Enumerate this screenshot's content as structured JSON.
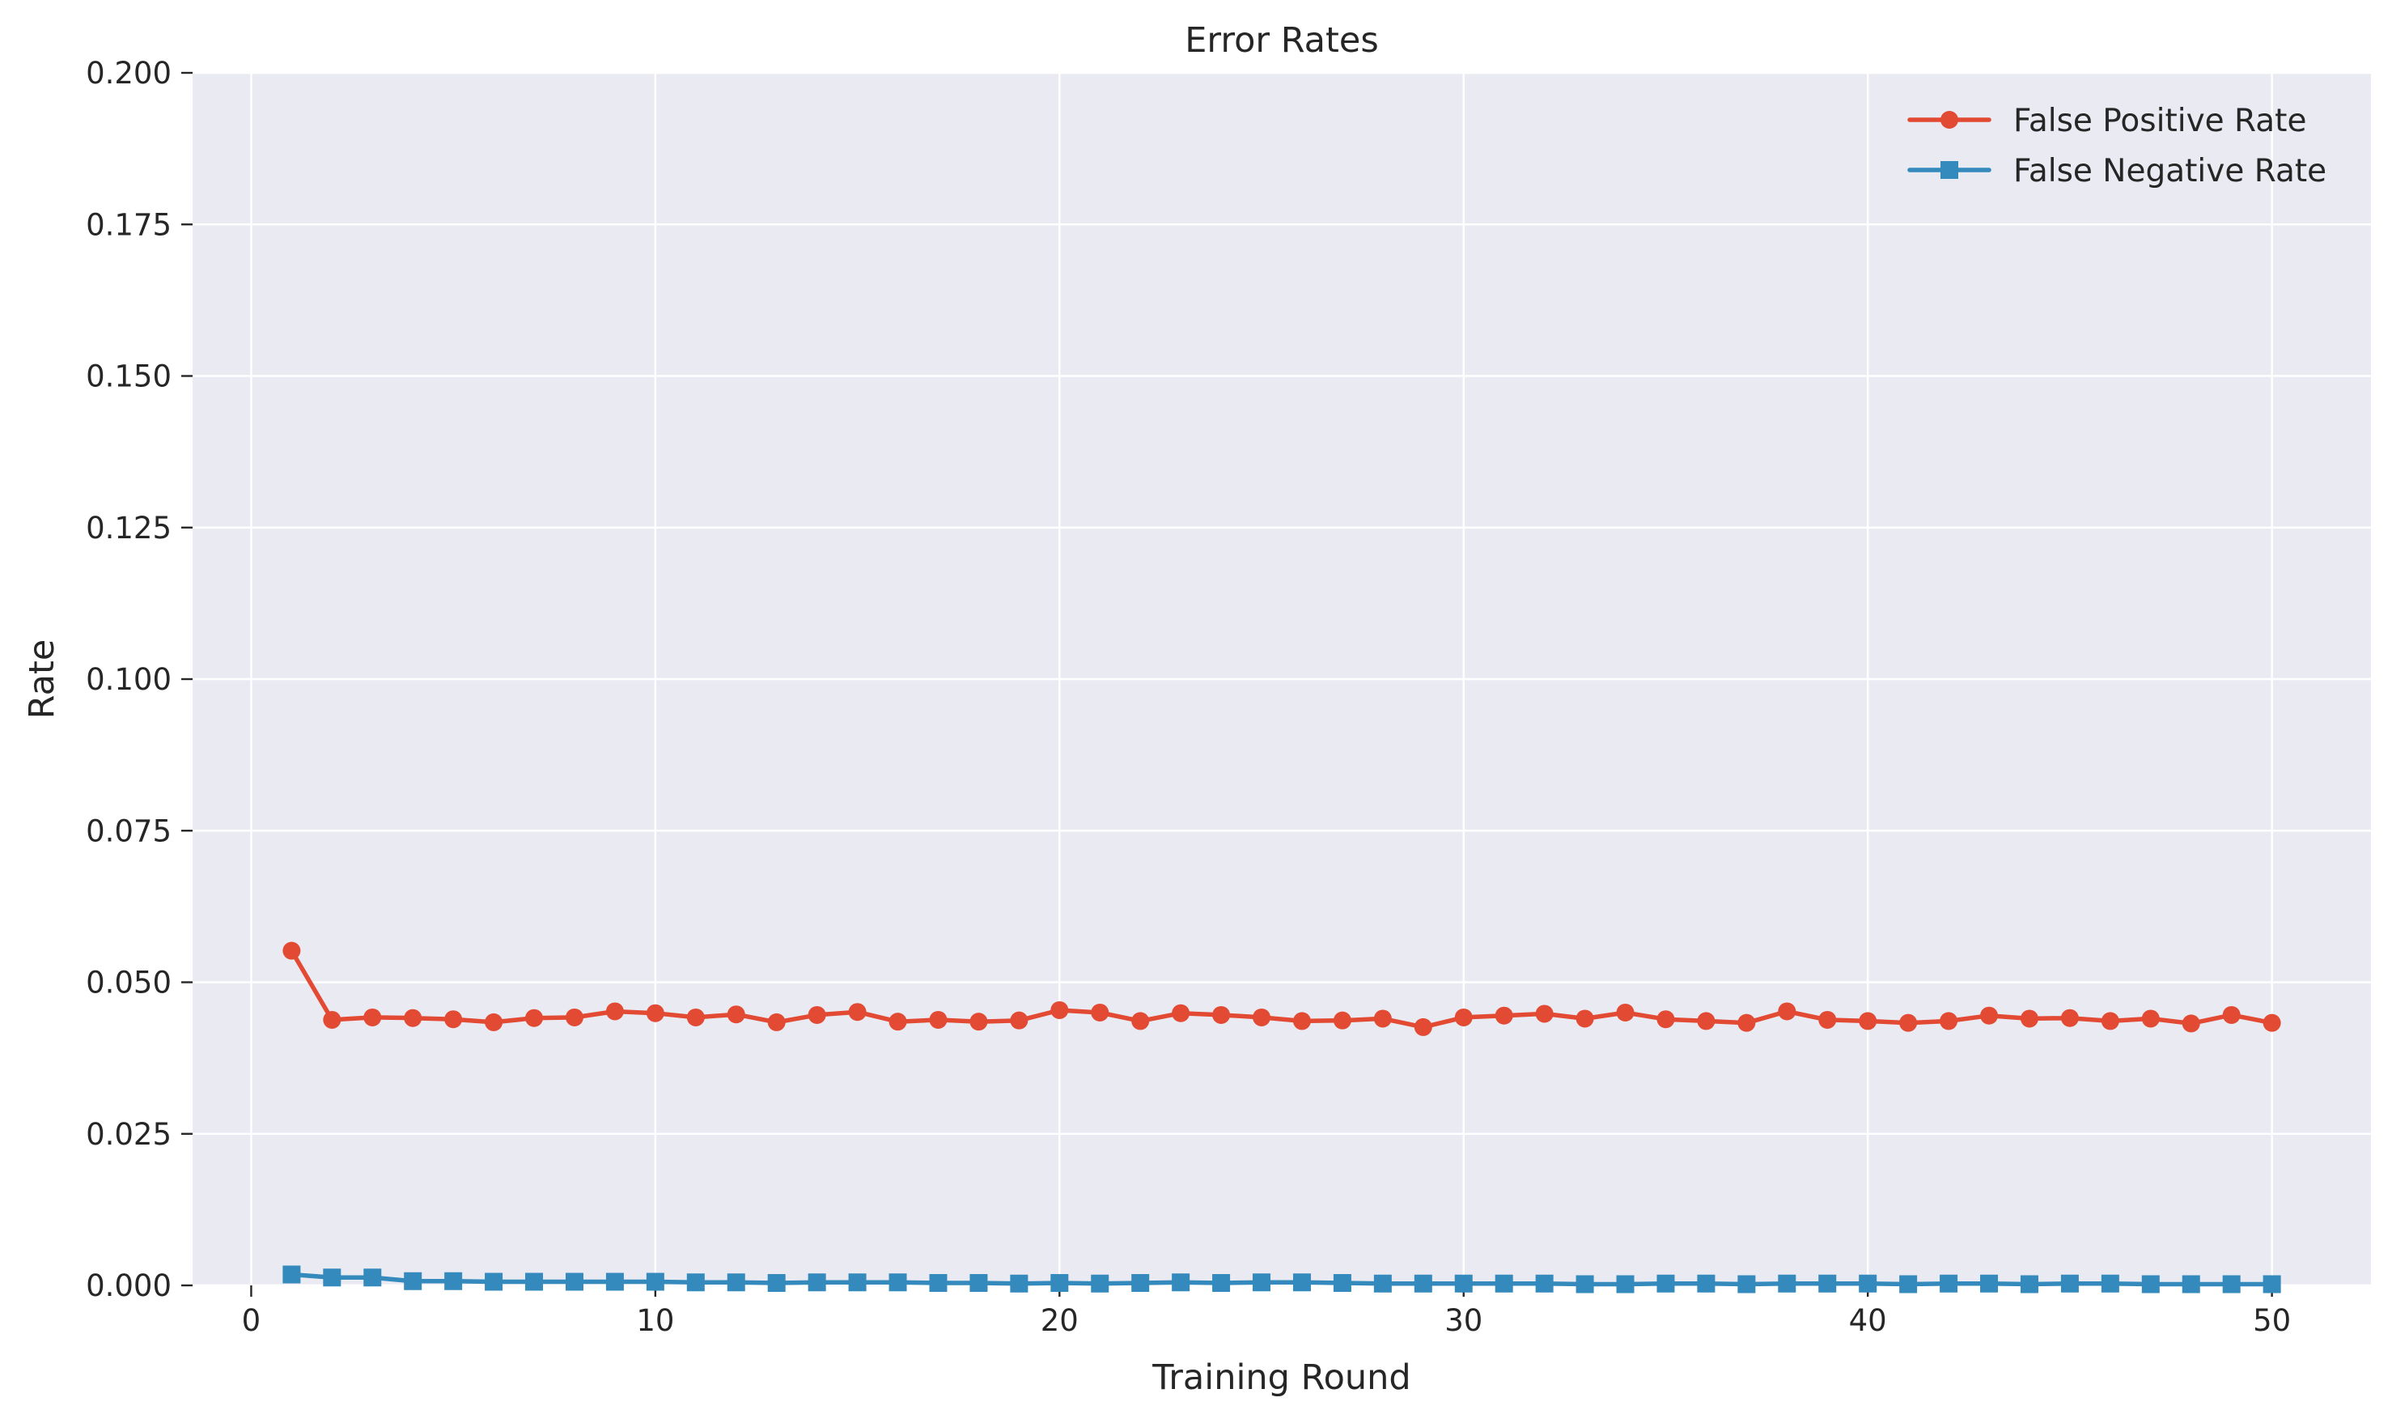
{
  "chart_data": {
    "type": "line",
    "title": "Error Rates",
    "xlabel": "Training Round",
    "ylabel": "Rate",
    "xlim": [
      -1.45,
      52.45
    ],
    "ylim": [
      0,
      0.2
    ],
    "xticks": [
      0,
      10,
      20,
      30,
      40,
      50
    ],
    "xtick_labels": [
      "0",
      "10",
      "20",
      "30",
      "40",
      "50"
    ],
    "yticks": [
      0,
      0.025,
      0.05,
      0.075,
      0.1,
      0.125,
      0.15,
      0.175,
      0.2
    ],
    "ytick_labels": [
      "0.000",
      "0.025",
      "0.050",
      "0.075",
      "0.100",
      "0.125",
      "0.150",
      "0.175",
      "0.200"
    ],
    "grid": true,
    "legend_position": "top-right",
    "x": [
      1,
      2,
      3,
      4,
      5,
      6,
      7,
      8,
      9,
      10,
      11,
      12,
      13,
      14,
      15,
      16,
      17,
      18,
      19,
      20,
      21,
      22,
      23,
      24,
      25,
      26,
      27,
      28,
      29,
      30,
      31,
      32,
      33,
      34,
      35,
      36,
      37,
      38,
      39,
      40,
      41,
      42,
      43,
      44,
      45,
      46,
      47,
      48,
      49,
      50
    ],
    "series": [
      {
        "name": "False Positive Rate",
        "color": "#E24A33",
        "marker": "circle",
        "values": [
          0.0552,
          0.0438,
          0.0442,
          0.0441,
          0.0439,
          0.0434,
          0.0441,
          0.0442,
          0.0452,
          0.0449,
          0.0442,
          0.0447,
          0.0434,
          0.0446,
          0.0451,
          0.0435,
          0.0438,
          0.0435,
          0.0437,
          0.0454,
          0.045,
          0.0436,
          0.0449,
          0.0446,
          0.0442,
          0.0436,
          0.0437,
          0.044,
          0.0426,
          0.0442,
          0.0445,
          0.0448,
          0.044,
          0.045,
          0.0439,
          0.0436,
          0.0433,
          0.0452,
          0.0438,
          0.0436,
          0.0433,
          0.0436,
          0.0445,
          0.044,
          0.0441,
          0.0436,
          0.044,
          0.0432,
          0.0446,
          0.0433
        ]
      },
      {
        "name": "False Negative Rate",
        "color": "#348ABD",
        "marker": "square",
        "values": [
          0.0018,
          0.0013,
          0.0013,
          0.0007,
          0.0007,
          0.0006,
          0.0006,
          0.0006,
          0.0006,
          0.0006,
          0.0005,
          0.0005,
          0.0004,
          0.0005,
          0.0005,
          0.0005,
          0.0004,
          0.0004,
          0.0003,
          0.0004,
          0.0003,
          0.0004,
          0.0005,
          0.0004,
          0.0005,
          0.0005,
          0.0004,
          0.0003,
          0.0003,
          0.0003,
          0.0003,
          0.0003,
          0.0002,
          0.0002,
          0.0003,
          0.0003,
          0.0002,
          0.0003,
          0.0003,
          0.0003,
          0.0002,
          0.0003,
          0.0003,
          0.0002,
          0.0003,
          0.0003,
          0.0002,
          0.0002,
          0.0002,
          0.0002
        ]
      }
    ]
  }
}
